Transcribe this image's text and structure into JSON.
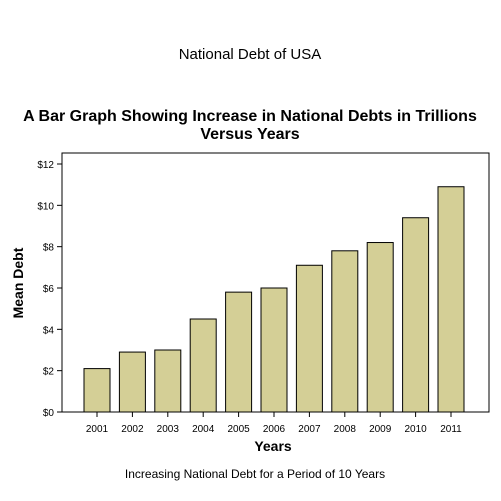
{
  "header": {
    "title": "National Debt of USA",
    "subtitle": "A Bar Graph Showing Increase in National Debts in Trillions Versus Years"
  },
  "footer": {
    "caption": "Increasing National Debt for a Period of 10 Years"
  },
  "colors": {
    "bar_fill": "#d4cf96",
    "bar_stroke": "#000000",
    "axis": "#000000"
  },
  "chart_data": {
    "type": "bar",
    "title": "National Debt of USA",
    "subtitle": "A Bar Graph Showing Increase in National Debts in Trillions Versus Years",
    "xlabel": "Years",
    "ylabel": "Mean Debt",
    "categories": [
      "2001",
      "2002",
      "2003",
      "2004",
      "2005",
      "2006",
      "2007",
      "2008",
      "2009",
      "2010",
      "2011"
    ],
    "values": [
      2.1,
      2.9,
      3.0,
      4.5,
      5.8,
      6.0,
      7.1,
      7.8,
      8.2,
      9.4,
      10.9
    ],
    "ylim": [
      0,
      12
    ],
    "yticks": [
      0,
      2,
      4,
      6,
      8,
      10,
      12
    ],
    "ytick_labels": [
      "$0",
      "$2",
      "$4",
      "$6",
      "$8",
      "$10",
      "$12"
    ],
    "grid": false,
    "legend": "none"
  }
}
